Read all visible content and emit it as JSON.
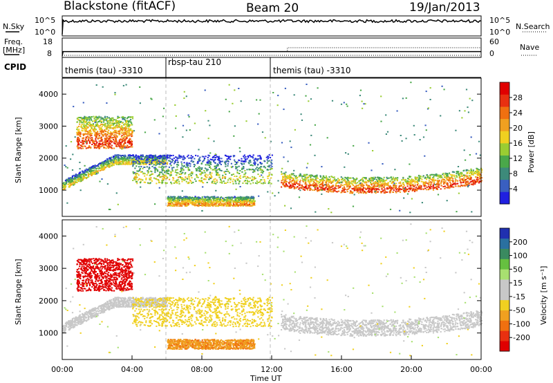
{
  "header": {
    "station": "Blackstone (fitACF)",
    "beam": "Beam 20",
    "date": "19/Jan/2013"
  },
  "top_panels": {
    "nsky_label": "N.Sky",
    "nsky_ticks": [
      "10^5",
      "10^0"
    ],
    "nsearch_label": "N.Search",
    "nsearch_ticks": [
      "10^5",
      "10^0"
    ],
    "freq_label": "Freq.",
    "freq_unit": "[MHz]",
    "freq_ticks": [
      "18",
      "8"
    ],
    "nave_label": "Nave",
    "nave_ticks": [
      "60",
      "0"
    ],
    "cpid_label": "CPID",
    "cpid_segments": [
      {
        "label": "themis (tau) -3310",
        "start_h": 0,
        "end_h": 6
      },
      {
        "label": "rbsp-tau 210",
        "start_h": 6,
        "end_h": 12
      },
      {
        "label": "themis (tau) -3310",
        "start_h": 12,
        "end_h": 24
      }
    ]
  },
  "panels": {
    "ylabel": "Slant Range [km]",
    "xlabel": "Time UT",
    "yticks": [
      "1000",
      "2000",
      "3000",
      "4000"
    ],
    "xticks": [
      "00:00",
      "04:00",
      "08:00",
      "12:00",
      "16:00",
      "20:00",
      "00:00"
    ]
  },
  "colorbars": {
    "power": {
      "label": "Power [dB]",
      "ticks": [
        "28",
        "24",
        "20",
        "16",
        "12",
        "8",
        "4"
      ],
      "colors": [
        "#2020e0",
        "#3a5fc0",
        "#3d8a7a",
        "#4aa84a",
        "#9acd32",
        "#f0d020",
        "#f0a020",
        "#f07010",
        "#e83010",
        "#e00000"
      ]
    },
    "velocity": {
      "label": "Velocity [m s⁻¹]",
      "ticks": [
        "200",
        "100",
        "50",
        "15",
        "-15",
        "-50",
        "-100",
        "-200"
      ],
      "colors": [
        "#2030b0",
        "#2a70a0",
        "#3a8a60",
        "#66c040",
        "#a8e070",
        "#c8c8c8",
        "#c8c8c8",
        "#f0d020",
        "#f0a020",
        "#f07010",
        "#e83010",
        "#e00000"
      ]
    }
  },
  "chart_data": {
    "type": "heatmap",
    "xlim_hours": [
      0,
      24
    ],
    "ylim_km": [
      180,
      4500
    ],
    "nsky_level": "~10^4",
    "nsearch_level": "~10^4",
    "freq_mhz": [
      {
        "start_h": 0,
        "end_h": 24,
        "value": 11
      }
    ],
    "nave": [
      {
        "start_h": 0,
        "end_h": 12.9,
        "value": 18
      },
      {
        "start_h": 12.9,
        "end_h": 24,
        "value": 30
      }
    ],
    "features": [
      {
        "name": "near-range band 00-06 UT",
        "start_h": 0,
        "end_h": 6,
        "range_km": [
          1000,
          2100
        ],
        "power_db": 12,
        "velocity_ms": 0
      },
      {
        "name": "far cloud 01-04 UT",
        "start_h": 0.8,
        "end_h": 4,
        "range_km": [
          2300,
          3300
        ],
        "power_db": 20,
        "velocity_ms": -200
      },
      {
        "name": "band 04-12 UT",
        "start_h": 4,
        "end_h": 12,
        "range_km": [
          1200,
          2100
        ],
        "power_db": 10,
        "velocity_ms": -30
      },
      {
        "name": "low layer 06-11 UT",
        "start_h": 6,
        "end_h": 11,
        "range_km": [
          500,
          800
        ],
        "power_db": 16,
        "velocity_ms": -70
      },
      {
        "name": "curved band 12:30-24 UT",
        "start_h": 12.5,
        "end_h": 24,
        "range_km": [
          900,
          2000
        ],
        "power_db": 20,
        "velocity_ms": 0
      }
    ]
  }
}
